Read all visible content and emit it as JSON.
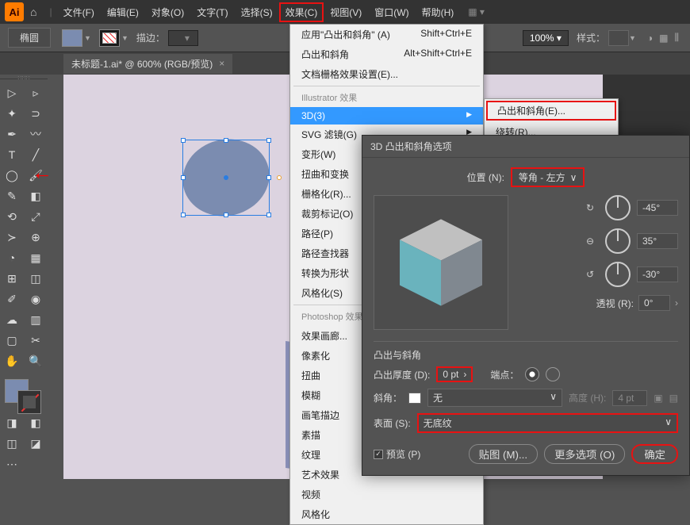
{
  "app": {
    "logo": "Ai"
  },
  "menu": {
    "items": [
      "文件(F)",
      "编辑(E)",
      "对象(O)",
      "文字(T)",
      "选择(S)",
      "效果(C)",
      "视图(V)",
      "窗口(W)",
      "帮助(H)"
    ],
    "highlight_index": 5
  },
  "options": {
    "shape": "椭圆",
    "stroke_label": "描边：",
    "zoom": "100%",
    "style_label": "样式："
  },
  "tab": {
    "title": "未标题-1.ai* @ 600% (RGB/预览)"
  },
  "dropdown": {
    "top": [
      {
        "label": "应用\"凸出和斜角\"",
        "key": "(A)",
        "sc": "Shift+Ctrl+E"
      },
      {
        "label": "凸出和斜角",
        "key": "",
        "sc": "Alt+Shift+Ctrl+E"
      },
      {
        "label": "文档栅格效果设置(E)...",
        "key": "",
        "sc": ""
      }
    ],
    "section1": "Illustrator 效果",
    "grp1": [
      {
        "label": "3D(3)",
        "sub": true,
        "sel": true
      },
      {
        "label": "SVG 滤镜(G)",
        "sub": true
      },
      {
        "label": "变形(W)",
        "sub": true
      },
      {
        "label": "扭曲和变换",
        "sub": true
      },
      {
        "label": "栅格化(R)..."
      },
      {
        "label": "裁剪标记(O)"
      },
      {
        "label": "路径(P)",
        "sub": true
      },
      {
        "label": "路径查找器",
        "sub": true
      },
      {
        "label": "转换为形状",
        "sub": true
      },
      {
        "label": "风格化(S)",
        "sub": true
      }
    ],
    "section2": "Photoshop 效果",
    "grp2": [
      "效果画廊...",
      "像素化",
      "扭曲",
      "模糊",
      "画笔描边",
      "素描",
      "纹理",
      "艺术效果",
      "视频",
      "风格化"
    ]
  },
  "submenu": {
    "items": [
      "凸出和斜角(E)...",
      "绕转(R)..."
    ]
  },
  "dialog": {
    "title": "3D 凸出和斜角选项",
    "pos_label": "位置 (N):",
    "pos_value": "等角 - 左方",
    "angles": [
      "-45°",
      "35°",
      "-30°"
    ],
    "persp_label": "透视 (R):",
    "persp_value": "0°",
    "extrude_section": "凸出与斜角",
    "depth_label": "凸出厚度 (D):",
    "depth_value": "0 pt",
    "cap_label": "端点：",
    "bevel_label": "斜角：",
    "bevel_value": "无",
    "height_label": "高度 (H):",
    "height_value": "4 pt",
    "surface_label": "表面 (S):",
    "surface_value": "无底纹",
    "preview": "预览 (P)",
    "map": "贴图 (M)...",
    "more": "更多选项 (O)",
    "ok": "确定"
  },
  "colors": {
    "fill": "#7b8cb0",
    "highlight": "#e81212",
    "cube_top": "#c0c0c0",
    "cube_left": "#6ab3bd",
    "cube_right": "#808890"
  }
}
